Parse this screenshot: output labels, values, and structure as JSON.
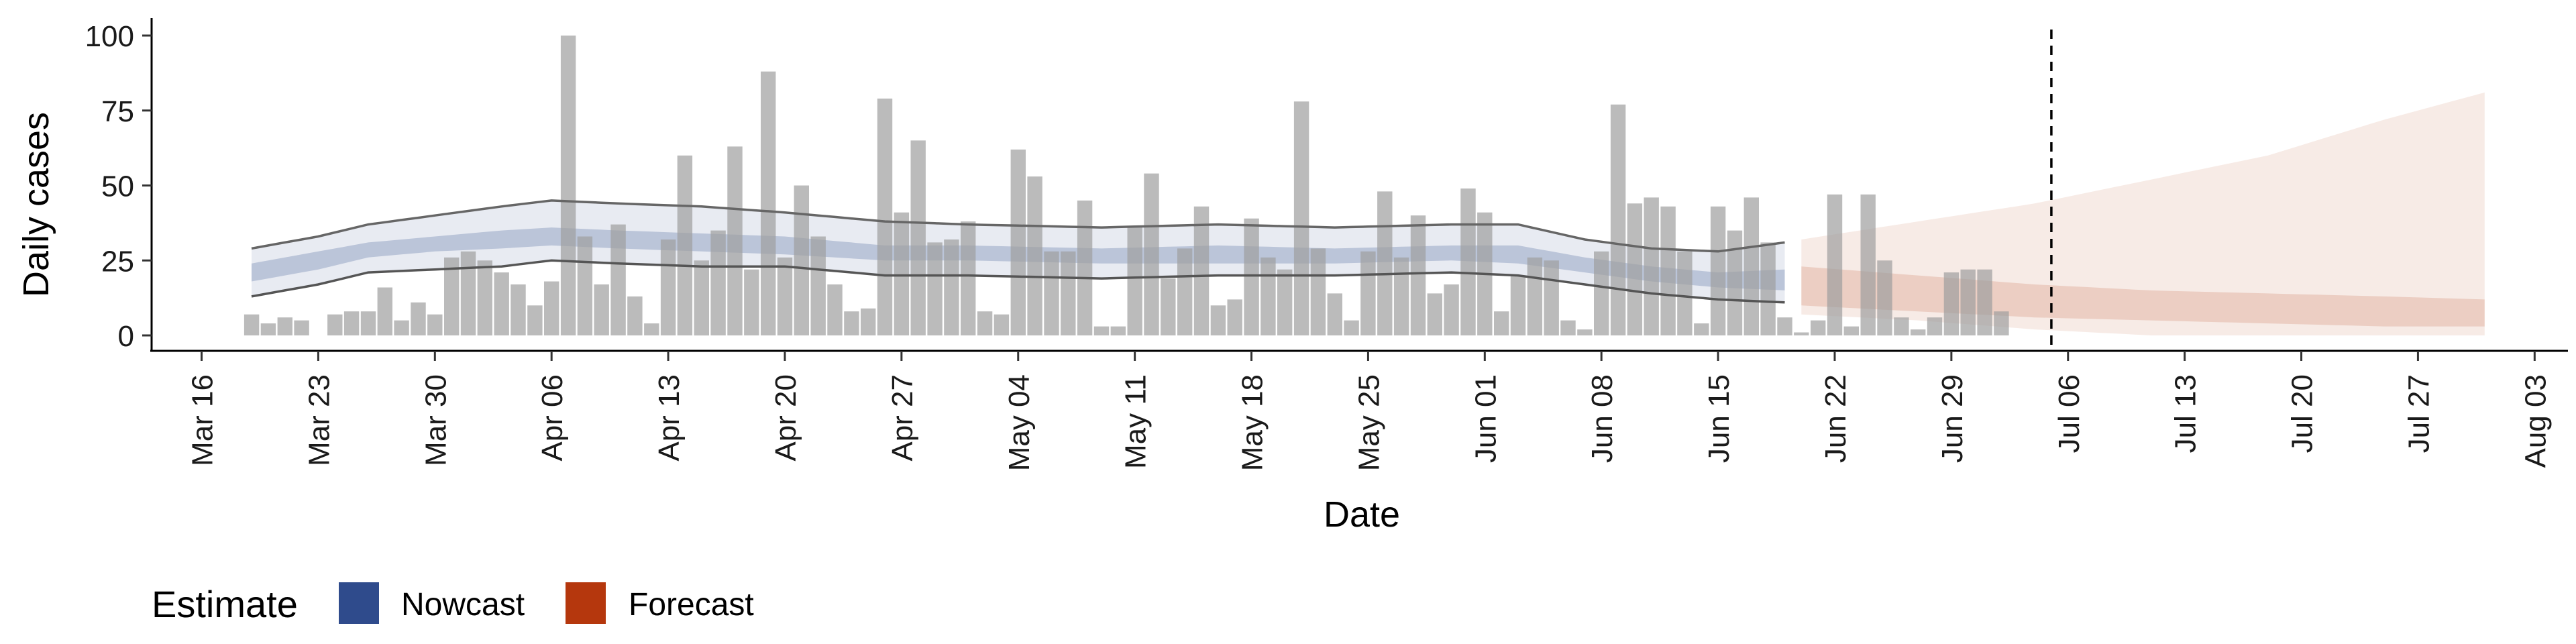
{
  "chart_data": {
    "type": "bar",
    "title": "",
    "xlabel": "Date",
    "ylabel": "Daily cases",
    "ylim": [
      0,
      100
    ],
    "yticks": [
      0,
      25,
      50,
      75,
      100
    ],
    "xlim": [
      "2020-03-13",
      "2020-08-05"
    ],
    "xticks": [
      {
        "date": "2020-03-16",
        "label": "Mar 16"
      },
      {
        "date": "2020-03-23",
        "label": "Mar 23"
      },
      {
        "date": "2020-03-30",
        "label": "Mar 30"
      },
      {
        "date": "2020-04-06",
        "label": "Apr 06"
      },
      {
        "date": "2020-04-13",
        "label": "Apr 13"
      },
      {
        "date": "2020-04-20",
        "label": "Apr 20"
      },
      {
        "date": "2020-04-27",
        "label": "Apr 27"
      },
      {
        "date": "2020-05-04",
        "label": "May 04"
      },
      {
        "date": "2020-05-11",
        "label": "May 11"
      },
      {
        "date": "2020-05-18",
        "label": "May 18"
      },
      {
        "date": "2020-05-25",
        "label": "May 25"
      },
      {
        "date": "2020-06-01",
        "label": "Jun 01"
      },
      {
        "date": "2020-06-08",
        "label": "Jun 08"
      },
      {
        "date": "2020-06-15",
        "label": "Jun 15"
      },
      {
        "date": "2020-06-22",
        "label": "Jun 22"
      },
      {
        "date": "2020-06-29",
        "label": "Jun 29"
      },
      {
        "date": "2020-07-06",
        "label": "Jul 06"
      },
      {
        "date": "2020-07-13",
        "label": "Jul 13"
      },
      {
        "date": "2020-07-20",
        "label": "Jul 20"
      },
      {
        "date": "2020-07-27",
        "label": "Jul 27"
      },
      {
        "date": "2020-08-03",
        "label": "Aug 03"
      }
    ],
    "reference_line": {
      "date": "2020-07-05",
      "style": "dashed"
    },
    "grid": false,
    "bars": {
      "start_date": "2020-03-19",
      "values": [
        7,
        4,
        6,
        5,
        0,
        7,
        8,
        8,
        16,
        5,
        11,
        7,
        26,
        28,
        25,
        21,
        17,
        10,
        18,
        100,
        33,
        17,
        37,
        13,
        4,
        32,
        60,
        25,
        35,
        63,
        22,
        88,
        26,
        50,
        33,
        17,
        8,
        9,
        79,
        41,
        65,
        31,
        32,
        38,
        8,
        7,
        62,
        53,
        28,
        28,
        45,
        3,
        3,
        36,
        54,
        19,
        29,
        43,
        10,
        12,
        39,
        26,
        22,
        78,
        29,
        14,
        5,
        28,
        48,
        26,
        40,
        14,
        17,
        49,
        41,
        8,
        20,
        26,
        25,
        5,
        2,
        28,
        77,
        44,
        46,
        43,
        28,
        4,
        43,
        35,
        46,
        31,
        6,
        1,
        5,
        47,
        3,
        47,
        25,
        6,
        2,
        6,
        21,
        22,
        22,
        8
      ]
    },
    "series": [
      {
        "name": "Nowcast",
        "color": "#2f4b8c",
        "start_date": "2020-03-19",
        "end_date": "2020-06-19",
        "keypoints": [
          {
            "date": "2020-03-19",
            "outer": [
              13,
              29
            ],
            "inner": [
              18,
              24
            ]
          },
          {
            "date": "2020-03-23",
            "outer": [
              17,
              33
            ],
            "inner": [
              22,
              28
            ]
          },
          {
            "date": "2020-03-26",
            "outer": [
              21,
              37
            ],
            "inner": [
              26,
              31
            ]
          },
          {
            "date": "2020-03-30",
            "outer": [
              22,
              40
            ],
            "inner": [
              28,
              33
            ]
          },
          {
            "date": "2020-04-03",
            "outer": [
              23,
              43
            ],
            "inner": [
              29,
              35
            ]
          },
          {
            "date": "2020-04-06",
            "outer": [
              25,
              45
            ],
            "inner": [
              30,
              36
            ]
          },
          {
            "date": "2020-04-10",
            "outer": [
              24,
              44
            ],
            "inner": [
              29,
              35
            ]
          },
          {
            "date": "2020-04-15",
            "outer": [
              23,
              43
            ],
            "inner": [
              28,
              34
            ]
          },
          {
            "date": "2020-04-20",
            "outer": [
              23,
              41
            ],
            "inner": [
              27,
              33
            ]
          },
          {
            "date": "2020-04-26",
            "outer": [
              20,
              38
            ],
            "inner": [
              25,
              30
            ]
          },
          {
            "date": "2020-05-01",
            "outer": [
              20,
              37
            ],
            "inner": [
              25,
              30
            ]
          },
          {
            "date": "2020-05-09",
            "outer": [
              19,
              36
            ],
            "inner": [
              24,
              29
            ]
          },
          {
            "date": "2020-05-16",
            "outer": [
              20,
              37
            ],
            "inner": [
              24,
              30
            ]
          },
          {
            "date": "2020-05-23",
            "outer": [
              20,
              36
            ],
            "inner": [
              24,
              29
            ]
          },
          {
            "date": "2020-05-30",
            "outer": [
              21,
              37
            ],
            "inner": [
              25,
              30
            ]
          },
          {
            "date": "2020-06-03",
            "outer": [
              20,
              37
            ],
            "inner": [
              24,
              30
            ]
          },
          {
            "date": "2020-06-07",
            "outer": [
              17,
              32
            ],
            "inner": [
              21,
              26
            ]
          },
          {
            "date": "2020-06-11",
            "outer": [
              14,
              29
            ],
            "inner": [
              18,
              23
            ]
          },
          {
            "date": "2020-06-15",
            "outer": [
              12,
              28
            ],
            "inner": [
              16,
              21
            ]
          },
          {
            "date": "2020-06-19",
            "outer": [
              11,
              31
            ],
            "inner": [
              15,
              22
            ]
          }
        ]
      },
      {
        "name": "Forecast",
        "color": "#b5370d",
        "start_date": "2020-06-20",
        "end_date": "2020-07-31",
        "keypoints": [
          {
            "date": "2020-06-20",
            "outer": [
              7,
              32
            ],
            "inner": [
              10,
              23
            ]
          },
          {
            "date": "2020-06-27",
            "outer": [
              5,
              38
            ],
            "inner": [
              8,
              20
            ]
          },
          {
            "date": "2020-07-04",
            "outer": [
              2,
              44
            ],
            "inner": [
              6,
              17
            ]
          },
          {
            "date": "2020-07-11",
            "outer": [
              0,
              52
            ],
            "inner": [
              5,
              15
            ]
          },
          {
            "date": "2020-07-18",
            "outer": [
              0,
              60
            ],
            "inner": [
              4,
              14
            ]
          },
          {
            "date": "2020-07-25",
            "outer": [
              0,
              72
            ],
            "inner": [
              3,
              13
            ]
          },
          {
            "date": "2020-07-31",
            "outer": [
              0,
              81
            ],
            "inner": [
              3,
              12
            ]
          }
        ]
      }
    ],
    "legend": {
      "title": "Estimate",
      "placement": "bottom-left",
      "entries": [
        {
          "label": "Nowcast",
          "color": "#2f4b8c"
        },
        {
          "label": "Forecast",
          "color": "#b5370d"
        }
      ]
    }
  }
}
